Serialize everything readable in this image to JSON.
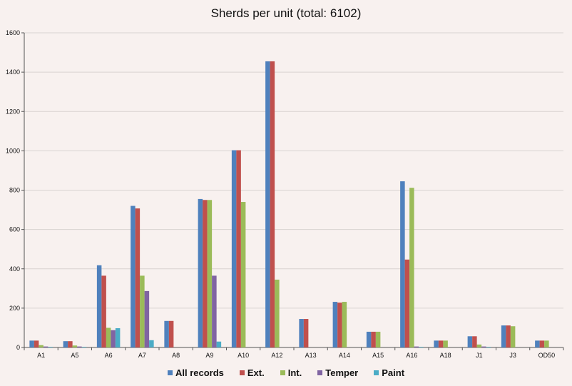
{
  "chart_data": {
    "type": "bar",
    "title": "Sherds per unit (total: 6102)",
    "xlabel": "",
    "ylabel": "",
    "ylim": [
      0,
      1600
    ],
    "yticks": [
      0,
      200,
      400,
      600,
      800,
      1000,
      1200,
      1400,
      1600
    ],
    "grid": true,
    "legend_position": "bottom",
    "categories": [
      "A1",
      "A5",
      "A6",
      "A7",
      "A8",
      "A9",
      "A10",
      "A12",
      "A13",
      "A14",
      "A15",
      "A16",
      "A18",
      "J1",
      "J3",
      "OD50"
    ],
    "series": [
      {
        "name": "All records",
        "color": "#4f81bd",
        "values": [
          35,
          32,
          418,
          720,
          135,
          755,
          1003,
          1455,
          145,
          232,
          80,
          845,
          35,
          57,
          112,
          35
        ]
      },
      {
        "name": "Ext.",
        "color": "#c0504d",
        "values": [
          35,
          32,
          365,
          707,
          135,
          750,
          1003,
          1455,
          145,
          228,
          80,
          447,
          35,
          57,
          112,
          35
        ]
      },
      {
        "name": "Int.",
        "color": "#9bbb59",
        "values": [
          12,
          10,
          100,
          365,
          0,
          750,
          740,
          345,
          0,
          232,
          80,
          812,
          35,
          15,
          108,
          35
        ]
      },
      {
        "name": "Temper",
        "color": "#8064a2",
        "values": [
          5,
          5,
          88,
          287,
          0,
          365,
          0,
          0,
          0,
          0,
          0,
          5,
          0,
          5,
          0,
          0
        ]
      },
      {
        "name": "Paint",
        "color": "#4bacc6",
        "values": [
          3,
          3,
          98,
          37,
          0,
          30,
          0,
          0,
          0,
          0,
          0,
          3,
          0,
          3,
          0,
          0
        ]
      }
    ]
  }
}
